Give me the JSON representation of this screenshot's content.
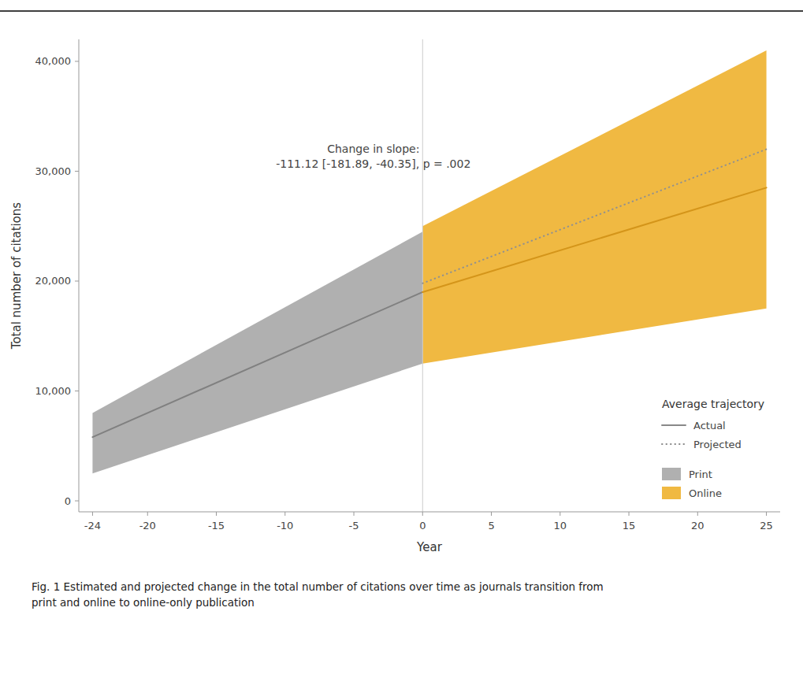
{
  "chart_data": {
    "type": "line",
    "xlabel": "Year",
    "ylabel": "Total number of citations",
    "annotation": "Change in slope:\n-111.12 [-181.89, -40.35], p = .002",
    "caption": "Fig. 1  Estimated and projected change in the total number of citations over time as journals transition from\nprint and online to online-only publication",
    "xlim": [
      -25,
      26
    ],
    "ylim": [
      -1000,
      42000
    ],
    "xticks": [
      -24,
      -20,
      -15,
      -10,
      -5,
      0,
      5,
      10,
      15,
      20,
      25
    ],
    "yticks": [
      0,
      {
        "value": 10000,
        "label": "10,000"
      },
      {
        "value": 20000,
        "label": "20,000"
      },
      {
        "value": 30000,
        "label": "30,000"
      },
      {
        "value": 40000,
        "label": "40,000"
      }
    ],
    "grid": false,
    "legend": "lower right",
    "legend_title": "Average trajectory",
    "legend_entries": [
      {
        "name": "Actual",
        "color": "#888888",
        "line_style": "solid"
      },
      {
        "name": "Projected",
        "color": "#888888",
        "line_style": "dotted"
      }
    ],
    "vlines": [
      0
    ],
    "series": [
      {
        "name": "Print",
        "type": "area_range",
        "color": "#b0b0b0",
        "x": [
          -24,
          0
        ],
        "upper": [
          8000,
          24500
        ],
        "lower": [
          2500,
          12500
        ]
      },
      {
        "name": "Online",
        "type": "area_range",
        "color": "#f0b942",
        "x": [
          0,
          25
        ],
        "upper": [
          25000,
          41000
        ],
        "lower": [
          12500,
          17500
        ]
      },
      {
        "type": "line",
        "color": "#808080",
        "line_style": "solid",
        "x": [
          -24,
          0
        ],
        "values": [
          5800,
          19000
        ]
      },
      {
        "type": "line",
        "color": "#d4951a",
        "line_style": "solid",
        "x": [
          0,
          25
        ],
        "values": [
          19000,
          28500
        ]
      },
      {
        "type": "line",
        "color": "#909090",
        "line_style": "dotted",
        "x": [
          0,
          25
        ],
        "values": [
          19800,
          32000
        ]
      }
    ]
  }
}
